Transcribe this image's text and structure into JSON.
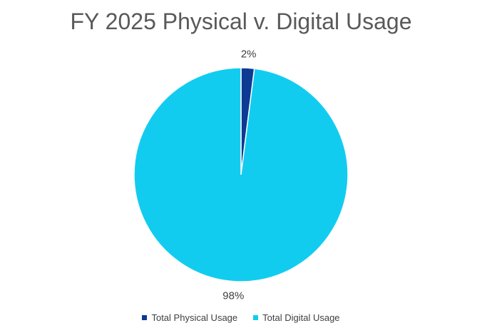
{
  "chart_data": {
    "type": "pie",
    "title": "FY 2025 Physical v. Digital Usage",
    "categories": [
      "Total Physical Usage",
      "Total Digital Usage"
    ],
    "values": [
      2,
      98
    ],
    "data_labels": [
      "2%",
      "98%"
    ],
    "colors": [
      "#0d3a93",
      "#12ccf0"
    ],
    "legend_position": "bottom",
    "start_angle_deg": 0,
    "direction": "clockwise"
  }
}
